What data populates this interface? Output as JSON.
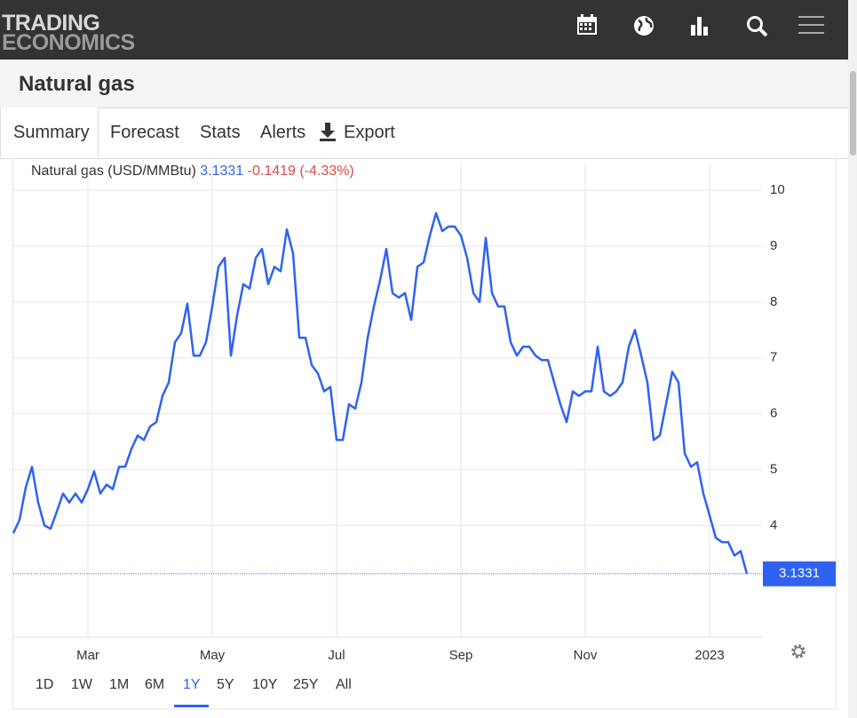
{
  "header": {
    "logo_top": "TRADING",
    "logo_bottom": "ECONOMICS"
  },
  "title": "Natural gas",
  "tabs": [
    "Summary",
    "Forecast",
    "Stats",
    "Alerts",
    "Export"
  ],
  "active_tab": "Summary",
  "ranges": [
    "1D",
    "1W",
    "1M",
    "6M",
    "1Y",
    "5Y",
    "10Y",
    "25Y",
    "All"
  ],
  "active_range": "1Y",
  "chart_data": {
    "type": "line",
    "change": "-0.1419",
    "change_pct": "(-4.33%)",
    "categories": [
      null,
      null,
      null,
      null,
      null,
      null,
      null,
      null,
      null,
      null,
      null,
      null,
      "Mar",
      null,
      null,
      null,
      null,
      null,
      null,
      null,
      null,
      null,
      null,
      null,
      null,
      null,
      null,
      null,
      null,
      null,
      null,
      null,
      "May",
      null,
      null,
      null,
      null,
      null,
      null,
      null,
      null,
      null,
      null,
      null,
      null,
      null,
      null,
      null,
      null,
      null,
      null,
      null,
      "Jul",
      null,
      null,
      null,
      null,
      null,
      null,
      null,
      null,
      null,
      null,
      null,
      null,
      null,
      null,
      null,
      null,
      null,
      null,
      null,
      "Sep",
      null,
      null,
      null,
      null,
      null,
      null,
      null,
      null,
      null,
      null,
      null,
      null,
      null,
      null,
      null,
      null,
      null,
      null,
      null,
      "Nov",
      null,
      null,
      null,
      null,
      null,
      null,
      null,
      null,
      null,
      null,
      null,
      null,
      null,
      null,
      null,
      null,
      null,
      null,
      null,
      "2023",
      null,
      null,
      null,
      null,
      null,
      null
    ],
    "series": [
      {
        "name": "Natural gas (USD/MMBtu)",
        "color": "#2f62f0",
        "values": [
          3.86,
          4.1,
          4.68,
          5.05,
          4.41,
          4.0,
          3.94,
          4.25,
          4.57,
          4.41,
          4.57,
          4.41,
          4.65,
          4.97,
          4.57,
          4.73,
          4.65,
          5.05,
          5.05,
          5.37,
          5.61,
          5.53,
          5.77,
          5.85,
          6.32,
          6.56,
          7.28,
          7.44,
          7.97,
          7.04,
          7.04,
          7.28,
          7.92,
          8.63,
          8.79,
          7.04,
          7.76,
          8.32,
          8.24,
          8.79,
          8.95,
          8.32,
          8.63,
          8.55,
          9.3,
          8.87,
          7.36,
          7.36,
          6.87,
          6.72,
          6.4,
          6.48,
          5.53,
          5.53,
          6.17,
          6.09,
          6.56,
          7.36,
          7.92,
          8.39,
          8.95,
          8.16,
          8.08,
          8.16,
          7.68,
          8.63,
          8.71,
          9.19,
          9.59,
          9.27,
          9.35,
          9.35,
          9.19,
          8.79,
          8.16,
          8.0,
          9.15,
          8.16,
          7.92,
          7.92,
          7.28,
          7.04,
          7.2,
          7.2,
          7.04,
          6.96,
          6.96,
          6.56,
          6.17,
          5.85,
          6.4,
          6.32,
          6.4,
          6.4,
          7.2,
          6.4,
          6.32,
          6.4,
          6.56,
          7.2,
          7.5,
          7.04,
          6.56,
          5.53,
          5.61,
          6.17,
          6.75,
          6.56,
          5.29,
          5.05,
          5.13,
          4.57,
          4.18,
          3.78,
          3.7,
          3.7,
          3.46,
          3.54,
          3.1331
        ]
      }
    ],
    "ylim": [
      2,
      10.4
    ],
    "yticks": [
      4,
      5,
      6,
      7,
      8,
      9,
      10
    ],
    "grid": true
  }
}
